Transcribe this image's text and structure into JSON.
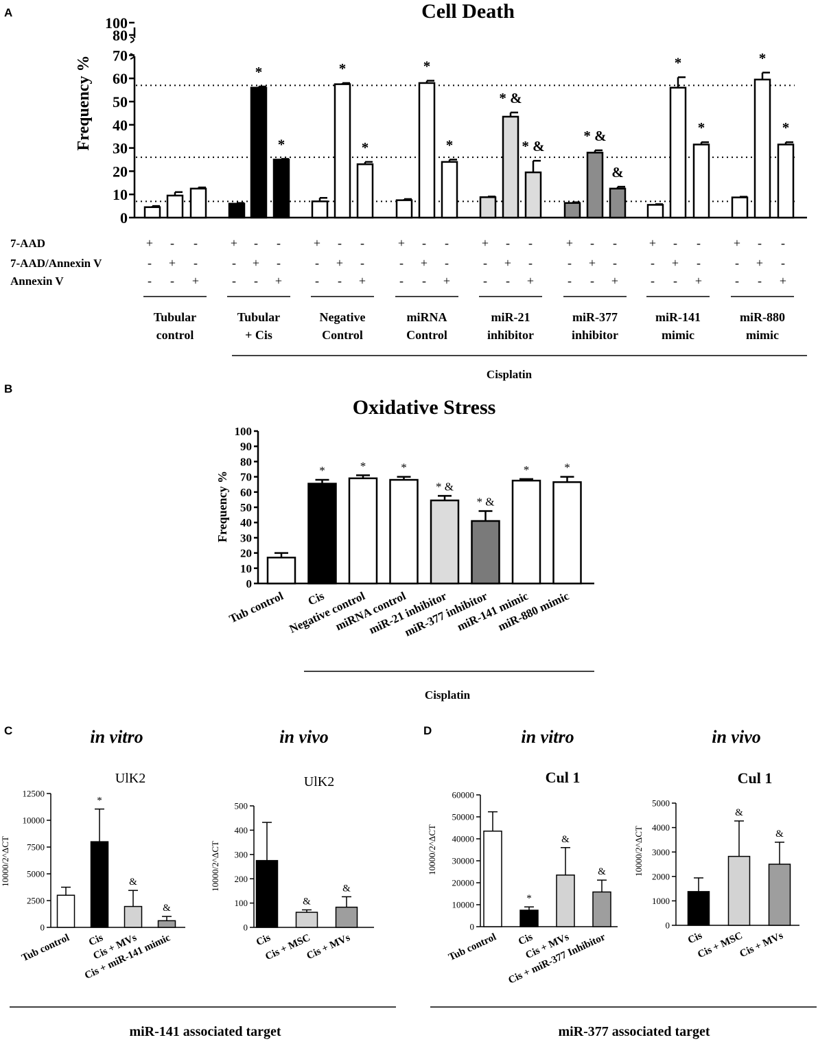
{
  "panels": {
    "A": {
      "label": "A",
      "chart_data": {
        "type": "bar",
        "title": "Cell Death",
        "ylabel": "Frequency %",
        "ylim": [
          0,
          100
        ],
        "axis_break": [
          70,
          80
        ],
        "yticks": [
          0,
          10,
          20,
          30,
          40,
          50,
          60,
          70,
          80,
          100
        ],
        "reference_lines": [
          7,
          26,
          57
        ],
        "row_labels": [
          "7-AAD",
          "7-AAD/Annexin V",
          "Annexin V"
        ],
        "groups": [
          {
            "name": "Tubular control",
            "lines": [
              "Tubular",
              "control"
            ],
            "values": [
              4.5,
              9.5,
              12.5
            ],
            "errors": [
              0.5,
              1.5,
              0.5
            ],
            "fills": [
              "#ffffff",
              "#ffffff",
              "#ffffff"
            ],
            "sig": [
              "",
              "",
              ""
            ]
          },
          {
            "name": "Tubular + Cis",
            "lines": [
              "Tubular",
              "+ Cis"
            ],
            "values": [
              6,
              56,
              25
            ],
            "errors": [
              0.3,
              0.5,
              0.3
            ],
            "fills": [
              "#000000",
              "#000000",
              "#000000"
            ],
            "sig": [
              "",
              "*",
              "*"
            ]
          },
          {
            "name": "Negative Control",
            "lines": [
              "Negative",
              "Control"
            ],
            "values": [
              7,
              57.5,
              23
            ],
            "errors": [
              1.5,
              0.5,
              1
            ],
            "fills": [
              "#ffffff",
              "#ffffff",
              "#ffffff"
            ],
            "sig": [
              "",
              "*",
              "*"
            ]
          },
          {
            "name": "miRNA Control",
            "lines": [
              "miRNA",
              "Control"
            ],
            "values": [
              7.5,
              58,
              24
            ],
            "errors": [
              0.5,
              1,
              1
            ],
            "fills": [
              "#ffffff",
              "#ffffff",
              "#ffffff"
            ],
            "sig": [
              "",
              "*",
              "*"
            ]
          },
          {
            "name": "miR-21 inhibitor",
            "lines": [
              "miR-21",
              "inhibitor"
            ],
            "values": [
              8.8,
              43.5,
              19.5
            ],
            "errors": [
              0.3,
              1.8,
              5
            ],
            "fills": [
              "#dcdcdc",
              "#dcdcdc",
              "#dcdcdc"
            ],
            "sig": [
              "",
              "* &",
              "* &"
            ]
          },
          {
            "name": "miR-377 inhibitor",
            "lines": [
              "miR-377",
              "inhibitor"
            ],
            "values": [
              6.3,
              28,
              12.5
            ],
            "errors": [
              0.3,
              1,
              0.8
            ],
            "fills": [
              "#8c8c8c",
              "#8c8c8c",
              "#8c8c8c"
            ],
            "sig": [
              "",
              "* &",
              "&"
            ]
          },
          {
            "name": "miR-141 mimic",
            "lines": [
              "miR-141",
              "mimic"
            ],
            "values": [
              5.5,
              56,
              31.5
            ],
            "errors": [
              0.3,
              4.5,
              1
            ],
            "fills": [
              "#ffffff",
              "#ffffff",
              "#ffffff"
            ],
            "sig": [
              "",
              "*",
              "*"
            ]
          },
          {
            "name": "miR-880 mimic",
            "lines": [
              "miR-880",
              "mimic"
            ],
            "values": [
              8.7,
              59.5,
              31.5
            ],
            "errors": [
              0.3,
              3,
              1
            ],
            "fills": [
              "#ffffff",
              "#ffffff",
              "#ffffff"
            ],
            "sig": [
              "",
              "*",
              "*"
            ]
          }
        ],
        "bracket_label": "Cisplatin"
      }
    },
    "B": {
      "label": "B",
      "chart_data": {
        "type": "bar",
        "title": "Oxidative Stress",
        "ylabel": "Frequency %",
        "ylim": [
          0,
          100
        ],
        "yticks": [
          0,
          10,
          20,
          30,
          40,
          50,
          60,
          70,
          80,
          90,
          100
        ],
        "categories": [
          "Tub control",
          "Cis",
          "Negative control",
          "miRNA control",
          "miR-21 inhibitor",
          "miR-377 inhibitor",
          "miR-141 mimic",
          "miR-880 mimic"
        ],
        "values": [
          17,
          65.5,
          69,
          68,
          54.5,
          41,
          67.5,
          66.5
        ],
        "errors": [
          3,
          2.5,
          2,
          2,
          3,
          6.5,
          1,
          3.5
        ],
        "fills": [
          "#ffffff",
          "#000000",
          "#ffffff",
          "#ffffff",
          "#dcdcdc",
          "#7a7a7a",
          "#ffffff",
          "#ffffff"
        ],
        "sig": [
          "",
          "*",
          "*",
          "*",
          "* &",
          "* &",
          "*",
          "*"
        ],
        "bracket_label": "Cisplatin"
      }
    },
    "C": {
      "label": "C",
      "bracket_label": "miR-141 associated target",
      "charts": [
        {
          "heading": "in vitro",
          "chart_data": {
            "type": "bar",
            "title": "UlK2",
            "ylabel": "10000/2^ΔCT",
            "ylim": [
              0,
              12500
            ],
            "yticks": [
              0,
              2500,
              5000,
              7500,
              10000,
              12500
            ],
            "categories": [
              "Tub control",
              "Cis",
              "Cis + MVs",
              "Cis + miR-141 mimic"
            ],
            "values": [
              3000,
              8000,
              1950,
              620
            ],
            "errors": [
              750,
              3050,
              1500,
              400
            ],
            "fills": [
              "#ffffff",
              "#000000",
              "#d3d3d3",
              "#9e9e9e"
            ],
            "sig": [
              "",
              "*",
              "&",
              "&"
            ]
          }
        },
        {
          "heading": "in vivo",
          "chart_data": {
            "type": "bar",
            "title": "UlK2",
            "ylabel": "10000/2^ΔCT",
            "ylim": [
              0,
              500
            ],
            "yticks": [
              0,
              100,
              200,
              300,
              400,
              500
            ],
            "categories": [
              "Cis",
              "Cis + MSC",
              "Cis + MVs"
            ],
            "values": [
              275,
              62,
              83
            ],
            "errors": [
              157,
              10,
              43
            ],
            "fills": [
              "#000000",
              "#d3d3d3",
              "#9e9e9e"
            ],
            "sig": [
              "",
              "&",
              "&"
            ]
          }
        }
      ]
    },
    "D": {
      "label": "D",
      "bracket_label": "miR-377 associated target",
      "charts": [
        {
          "heading": "in vitro",
          "chart_data": {
            "type": "bar",
            "title": "Cul 1",
            "ylabel": "10000/2^ΔCT",
            "ylim": [
              0,
              60000
            ],
            "yticks": [
              0,
              10000,
              20000,
              30000,
              40000,
              50000,
              60000
            ],
            "categories": [
              "Tub control",
              "Cis",
              "Cis + MVs",
              "Cis + miR-377 Inhibitor"
            ],
            "values": [
              43500,
              7500,
              23500,
              15800
            ],
            "errors": [
              8800,
              1500,
              12500,
              5400
            ],
            "fills": [
              "#ffffff",
              "#000000",
              "#d3d3d3",
              "#9e9e9e"
            ],
            "sig": [
              "",
              "*",
              "&",
              "&"
            ]
          }
        },
        {
          "heading": "in vivo",
          "chart_data": {
            "type": "bar",
            "title": "Cul 1",
            "ylabel": "10000/2^ΔCT",
            "ylim": [
              0,
              5000
            ],
            "yticks": [
              0,
              1000,
              2000,
              3000,
              4000,
              5000
            ],
            "categories": [
              "Cis",
              "Cis + MSC",
              "Cis + MVs"
            ],
            "values": [
              1380,
              2820,
              2500
            ],
            "errors": [
              560,
              1450,
              900
            ],
            "fills": [
              "#000000",
              "#d3d3d3",
              "#9e9e9e"
            ],
            "sig": [
              "",
              "&",
              "&"
            ]
          }
        }
      ]
    }
  }
}
